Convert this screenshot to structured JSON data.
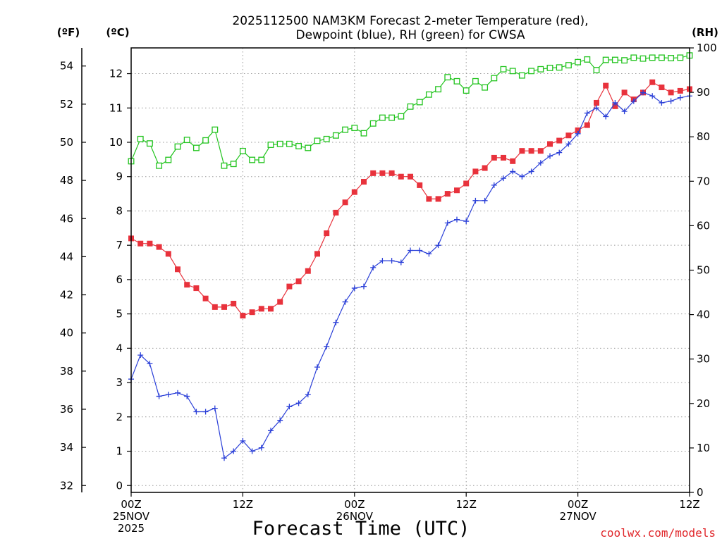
{
  "chart_data": {
    "type": "line",
    "title": "2025112500 NAM3KM Forecast 2-meter Temperature (red),",
    "subtitle": "Dewpoint (blue), RH (green) for CWSA",
    "xlabel": "Forecast Time (UTC)",
    "watermark": "coolwx.com/models",
    "left_outer_unit": "(ºF)",
    "left_inner_unit": "(ºC)",
    "right_unit": "(RH)",
    "xlim": [
      0,
      60
    ],
    "c_ylim": [
      -0.2,
      12.75
    ],
    "rh_ylim": [
      0,
      100
    ],
    "x_ticks": [
      {
        "x": 0,
        "lines": [
          "00Z",
          "25NOV",
          "2025"
        ]
      },
      {
        "x": 12,
        "lines": [
          "12Z"
        ]
      },
      {
        "x": 24,
        "lines": [
          "00Z",
          "26NOV"
        ]
      },
      {
        "x": 36,
        "lines": [
          "12Z"
        ]
      },
      {
        "x": 48,
        "lines": [
          "00Z",
          "27NOV"
        ]
      },
      {
        "x": 60,
        "lines": [
          "12Z"
        ]
      }
    ],
    "x_gridlines": [
      12,
      24,
      36,
      48
    ],
    "c_ticks": [
      0,
      1,
      2,
      3,
      4,
      5,
      6,
      7,
      8,
      9,
      10,
      11,
      12
    ],
    "f_ticks": [
      32,
      34,
      36,
      38,
      40,
      42,
      44,
      46,
      48,
      50,
      52,
      54
    ],
    "rh_ticks": [
      0,
      10,
      20,
      30,
      40,
      50,
      60,
      70,
      80,
      90,
      100
    ],
    "x": [
      0,
      1,
      2,
      3,
      4,
      5,
      6,
      7,
      8,
      9,
      10,
      11,
      12,
      13,
      14,
      15,
      16,
      17,
      18,
      19,
      20,
      21,
      22,
      23,
      24,
      25,
      26,
      27,
      28,
      29,
      30,
      31,
      32,
      33,
      34,
      35,
      36,
      37,
      38,
      39,
      40,
      41,
      42,
      43,
      44,
      45,
      46,
      47,
      48,
      49,
      50,
      51,
      52,
      53,
      54,
      55,
      56,
      57,
      58,
      59,
      60
    ],
    "series": [
      {
        "name": "Temperature",
        "units": "°C",
        "color": "#e8323c",
        "marker": "filled-square",
        "values": [
          7.2,
          7.05,
          7.05,
          6.95,
          6.75,
          6.3,
          5.85,
          5.75,
          5.45,
          5.2,
          5.2,
          5.3,
          4.95,
          5.05,
          5.15,
          5.15,
          5.35,
          5.8,
          5.95,
          6.25,
          6.75,
          7.35,
          7.95,
          8.25,
          8.55,
          8.85,
          9.1,
          9.1,
          9.1,
          9.0,
          9.0,
          8.75,
          8.35,
          8.35,
          8.5,
          8.6,
          8.8,
          9.15,
          9.25,
          9.55,
          9.55,
          9.45,
          9.75,
          9.75,
          9.75,
          9.95,
          10.05,
          10.2,
          10.35,
          10.5,
          11.15,
          11.65,
          11.05,
          11.45,
          11.25,
          11.45,
          11.75,
          11.6,
          11.45,
          11.5,
          11.55
        ]
      },
      {
        "name": "Dewpoint",
        "units": "°C",
        "color": "#2a3fd8",
        "marker": "plus",
        "values": [
          3.1,
          3.8,
          3.55,
          2.6,
          2.65,
          2.7,
          2.6,
          2.15,
          2.15,
          2.25,
          0.8,
          1.0,
          1.3,
          1.0,
          1.1,
          1.6,
          1.9,
          2.3,
          2.4,
          2.65,
          3.45,
          4.05,
          4.75,
          5.35,
          5.75,
          5.8,
          6.35,
          6.55,
          6.55,
          6.5,
          6.85,
          6.85,
          6.75,
          7.0,
          7.65,
          7.75,
          7.7,
          8.3,
          8.3,
          8.75,
          8.95,
          9.15,
          9.0,
          9.15,
          9.4,
          9.6,
          9.7,
          9.95,
          10.25,
          10.85,
          11.0,
          10.75,
          11.15,
          10.9,
          11.2,
          11.45,
          11.35,
          11.15,
          11.2,
          11.3,
          11.35
        ]
      },
      {
        "name": "RH",
        "units": "%",
        "color": "#22c41e",
        "marker": "open-square",
        "values": [
          74.5,
          79.5,
          78.5,
          73.5,
          74.8,
          77.8,
          79.3,
          77.5,
          79.2,
          81.6,
          73.5,
          73.9,
          76.8,
          74.8,
          74.8,
          78.2,
          78.4,
          78.4,
          77.9,
          77.5,
          79.1,
          79.5,
          80.3,
          81.6,
          82.0,
          80.8,
          83.0,
          84.3,
          84.3,
          84.6,
          86.8,
          87.8,
          89.5,
          90.7,
          93.4,
          92.5,
          90.4,
          92.5,
          91.1,
          93.2,
          95.2,
          94.8,
          93.8,
          94.8,
          95.2,
          95.5,
          95.6,
          96.1,
          96.8,
          97.4,
          95.0,
          97.3,
          97.3,
          97.2,
          97.8,
          97.6,
          97.8,
          97.8,
          97.7,
          97.8,
          98.3
        ]
      }
    ]
  }
}
